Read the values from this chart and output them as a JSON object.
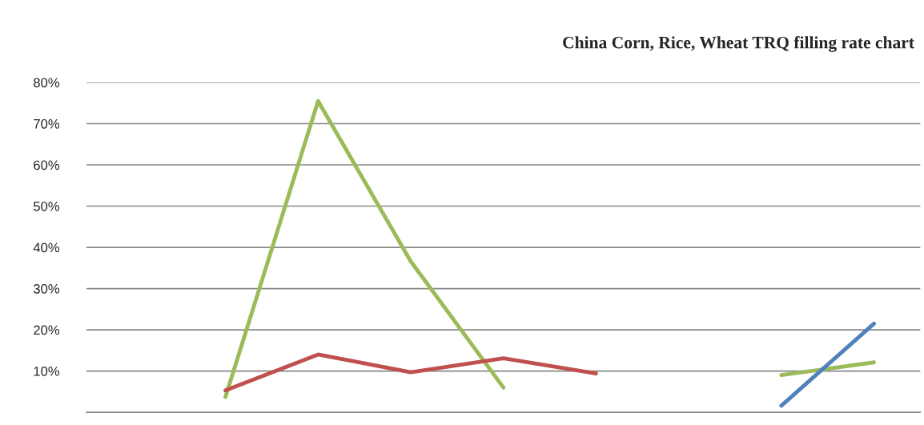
{
  "chart_data": {
    "type": "line",
    "title": "China Corn, Rice, Wheat TRQ filling rate chart",
    "categories": [
      null,
      null,
      null,
      null,
      null,
      null,
      null,
      null,
      null
    ],
    "ylim": [
      0,
      80
    ],
    "yticks": [
      {
        "value": 10,
        "label": "10%"
      },
      {
        "value": 20,
        "label": "20%"
      },
      {
        "value": 30,
        "label": "30%"
      },
      {
        "value": 40,
        "label": "40%"
      },
      {
        "value": 50,
        "label": "50%"
      },
      {
        "value": 60,
        "label": "60%"
      },
      {
        "value": 70,
        "label": "70%"
      },
      {
        "value": 80,
        "label": "80%"
      }
    ],
    "grid": "y",
    "marker": "none",
    "line_style": "solid",
    "series": [
      {
        "color": "#9bbb59",
        "values": [
          null,
          3.7,
          75.5,
          36.6,
          6.0,
          null,
          null,
          9.0,
          12.1
        ]
      },
      {
        "color": "#c0504d",
        "values": [
          null,
          5.3,
          14.0,
          9.7,
          13.1,
          9.4,
          null,
          null,
          null
        ]
      },
      {
        "color": "#4f81bd",
        "values": [
          null,
          null,
          null,
          null,
          null,
          null,
          null,
          1.6,
          21.5
        ]
      }
    ]
  }
}
